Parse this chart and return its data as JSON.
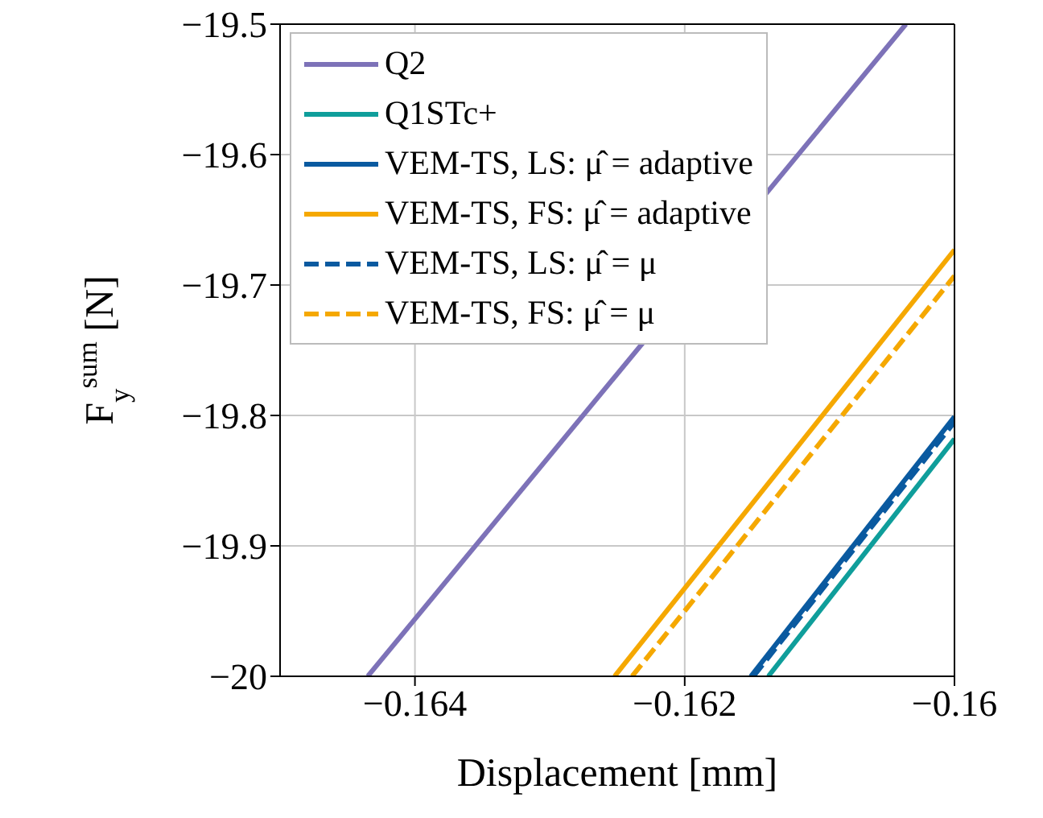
{
  "chart_data": {
    "type": "line",
    "xlabel": "Displacement [mm]",
    "ylabel": "F$_{y}$$^{sum}$ [N]",
    "xlim": [
      -0.165,
      -0.16
    ],
    "xticks": [
      -0.164,
      -0.162,
      -0.16
    ],
    "ylim": [
      -20,
      -19.5
    ],
    "yticks": [
      -20,
      -19.9,
      -19.8,
      -19.7,
      -19.6,
      -19.5
    ],
    "grid": true,
    "legend": "top left",
    "marker": "none",
    "series": [
      {
        "name": "Q2",
        "color": "#7d72b8",
        "x": [
          -0.16435,
          -0.16036
        ],
        "values": [
          -20,
          -19.5
        ]
      },
      {
        "name": "Q1STc+",
        "color": "#0f9e9b",
        "x": [
          -0.16138,
          -0.16
        ],
        "values": [
          -20,
          -19.818
        ]
      },
      {
        "name": "VEM-TS, LS: μ̂ = adaptive",
        "color": "#0a5aa0",
        "x": [
          -0.16151,
          -0.16
        ],
        "values": [
          -20,
          -19.801
        ]
      },
      {
        "name": "VEM-TS, FS: μ̂ = adaptive",
        "color": "#f5a800",
        "x": [
          -0.16252,
          -0.16
        ],
        "values": [
          -20,
          -19.673
        ]
      },
      {
        "name": "VEM-TS, LS: μ̂ = μ",
        "color": "#0a5aa0",
        "line_style": "dashed",
        "x": [
          -0.16149,
          -0.16
        ],
        "values": [
          -20,
          -19.805
        ]
      },
      {
        "name": "VEM-TS, FS: μ̂ = μ",
        "color": "#f5a800",
        "line_style": "dashed",
        "x": [
          -0.16239,
          -0.16
        ],
        "values": [
          -20,
          -19.693
        ]
      }
    ]
  }
}
